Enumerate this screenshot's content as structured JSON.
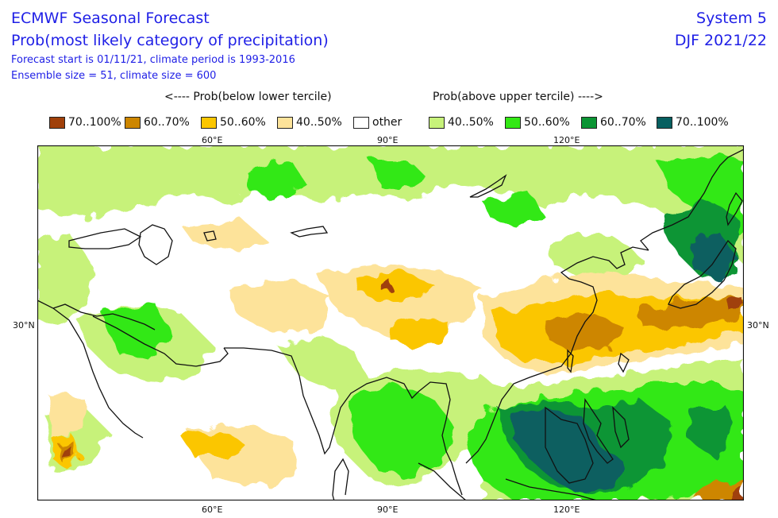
{
  "header": {
    "title": "ECMWF Seasonal Forecast",
    "subtitle": "Prob(most likely category of precipitation)",
    "forecast_line": "Forecast start is 01/11/21, climate period is 1993-2016",
    "ensemble_line": "Ensemble size = 51, climate size = 600",
    "system": "System 5",
    "season": "DJF 2021/22"
  },
  "legend": {
    "below_heading": "<---- Prob(below lower tercile)",
    "above_heading": "Prob(above upper tercile) ---->",
    "items": [
      {
        "label": "70..100%",
        "color": "#a0400a"
      },
      {
        "label": "60..70%",
        "color": "#cd8600"
      },
      {
        "label": "50..60%",
        "color": "#fbc600"
      },
      {
        "label": "40..50%",
        "color": "#fde39a"
      },
      {
        "label": "other",
        "color": "#ffffff"
      },
      {
        "label": "40..50%",
        "color": "#c7f27a"
      },
      {
        "label": "50..60%",
        "color": "#33e815"
      },
      {
        "label": "60..70%",
        "color": "#0b9534"
      },
      {
        "label": "70..100%",
        "color": "#075f60"
      }
    ]
  },
  "axes": {
    "top_ticks": [
      "60°E",
      "90°E",
      "120°E"
    ],
    "bottom_ticks": [
      "60°E",
      "90°E",
      "120°E"
    ],
    "left_tick": "30°N",
    "right_tick": "30°N"
  }
}
